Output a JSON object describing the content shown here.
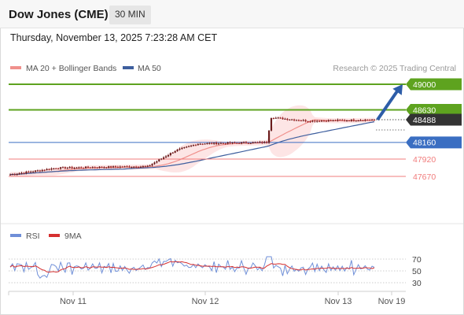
{
  "header": {
    "title": "Dow Jones (CME)",
    "timeframe": "30 MIN",
    "datetime": "Thursday, November 13, 2025 7:23:28 AM CET"
  },
  "legend": {
    "ma20_label": "MA 20 + Bollinger Bands",
    "ma50_label": "MA 50",
    "credit": "Research © 2025 Trading Central"
  },
  "rsi_legend": {
    "rsi_label": "RSI",
    "ma_label": "9MA"
  },
  "colors": {
    "candle": "#9b2424",
    "ma20": "#f0908c",
    "ma50": "#3e5f9e",
    "bollinger_fill": "#fde2e2",
    "resistance": "#5ea31f",
    "support_red": "#f17c7c",
    "support_blue": "#3a6ec2",
    "arrow": "#2d5da8",
    "current_price": "#333333",
    "rsi_line": "#6f8fd8",
    "rsi_ma": "#d63030"
  },
  "chart_data": [
    {
      "type": "candlestick",
      "xlabel": "",
      "ylabel": "",
      "x_ticks": [
        "Nov 11",
        "Nov 12",
        "Nov 13",
        "Nov 19"
      ],
      "close_path": [
        [
          "Nov 11",
          47696
        ],
        [
          "Nov 11",
          47790
        ],
        [
          "Nov 11",
          47805
        ],
        [
          "Nov 12",
          47813
        ],
        [
          "Nov 12",
          48040
        ],
        [
          "Nov 12",
          48142
        ],
        [
          "Nov 12",
          48150
        ],
        [
          "Nov 12",
          48162
        ],
        [
          "Nov 13",
          48520
        ],
        [
          "Nov 13",
          48470
        ],
        [
          "Nov 13",
          48488
        ]
      ],
      "levels": [
        {
          "label": "49000",
          "value": 49000,
          "kind": "resistance-target"
        },
        {
          "label": "48630",
          "value": 48630,
          "kind": "resistance"
        },
        {
          "label": "48488",
          "value": 48488,
          "kind": "last-price"
        },
        {
          "label": "48160",
          "value": 48160,
          "kind": "pivot"
        },
        {
          "label": "47920",
          "value": 47920,
          "kind": "support"
        },
        {
          "label": "47670",
          "value": 47670,
          "kind": "support"
        }
      ],
      "series": [
        {
          "name": "MA 20 + Bollinger Bands"
        },
        {
          "name": "MA 50"
        }
      ],
      "forecast_arrow": {
        "from": 48488,
        "to": 49000
      },
      "legend": "top-left",
      "grid": false
    },
    {
      "type": "line",
      "series": [
        {
          "name": "RSI"
        },
        {
          "name": "9MA"
        }
      ],
      "y_ticks": [
        "70",
        "50",
        "30"
      ],
      "ylim": [
        0,
        100
      ],
      "legend": "top-left"
    }
  ]
}
